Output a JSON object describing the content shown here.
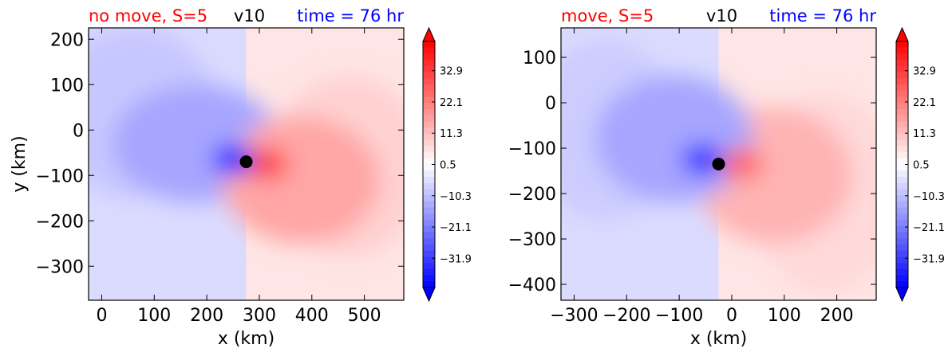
{
  "chart_data": [
    {
      "type": "heatmap",
      "title_left": "no move, S=5",
      "title_center": "v10",
      "title_right": "time = 76 hr",
      "title_left_color": "#ff0000",
      "title_right_color": "#0000ff",
      "xlabel": "x (km)",
      "ylabel": "y (km)",
      "xlim": [
        -25,
        575
      ],
      "ylim": [
        -375,
        225
      ],
      "xticks": [
        0,
        100,
        200,
        300,
        400,
        500
      ],
      "yticks": [
        200,
        100,
        0,
        -100,
        -200,
        -300
      ],
      "center_marker": {
        "x": 275,
        "y": -70
      },
      "features": [
        {
          "kind": "neg",
          "x": 250,
          "y": -65,
          "rx": 40,
          "ry": 35,
          "level": 0.85
        },
        {
          "kind": "neg",
          "x": 180,
          "y": -30,
          "rx": 160,
          "ry": 130,
          "level": 0.35
        },
        {
          "kind": "neg",
          "x": 60,
          "y": 40,
          "rx": 160,
          "ry": 190,
          "level": 0.22
        },
        {
          "kind": "pos",
          "x": 315,
          "y": -75,
          "rx": 40,
          "ry": 35,
          "level": 0.75
        },
        {
          "kind": "pos",
          "x": 380,
          "y": -110,
          "rx": 150,
          "ry": 140,
          "level": 0.35
        },
        {
          "kind": "pos",
          "x": 470,
          "y": -80,
          "rx": 150,
          "ry": 200,
          "level": 0.18
        }
      ],
      "colorbar": {
        "ticks": [
          32.9,
          22.1,
          11.3,
          0.5,
          -10.3,
          -21.1,
          -31.9
        ],
        "tick_labels": [
          "32.9",
          "22.1",
          "11.3",
          "0.5",
          "−10.3",
          "−21.1",
          "−31.9"
        ],
        "range": [
          -42,
          43
        ],
        "extend": "both",
        "cmap": "bwr"
      }
    },
    {
      "type": "heatmap",
      "title_left": "move, S=5",
      "title_center": "v10",
      "title_right": "time = 76 hr",
      "title_left_color": "#ff0000",
      "title_right_color": "#0000ff",
      "xlabel": "x (km)",
      "ylabel": "",
      "xlim": [
        -325,
        275
      ],
      "ylim": [
        -435,
        165
      ],
      "xticks": [
        -300,
        -200,
        -100,
        0,
        100,
        200
      ],
      "yticks": [
        100,
        0,
        -100,
        -200,
        -300,
        -400
      ],
      "center_marker": {
        "x": -25,
        "y": -135
      },
      "features": [
        {
          "kind": "neg",
          "x": -55,
          "y": -125,
          "rx": 40,
          "ry": 35,
          "level": 0.8
        },
        {
          "kind": "neg",
          "x": -110,
          "y": -80,
          "rx": 150,
          "ry": 140,
          "level": 0.35
        },
        {
          "kind": "neg",
          "x": -240,
          "y": -60,
          "rx": 140,
          "ry": 200,
          "level": 0.2
        },
        {
          "kind": "pos",
          "x": 20,
          "y": -135,
          "rx": 40,
          "ry": 35,
          "level": 0.6
        },
        {
          "kind": "pos",
          "x": 80,
          "y": -160,
          "rx": 150,
          "ry": 150,
          "level": 0.3
        },
        {
          "kind": "pos",
          "x": 180,
          "y": -200,
          "rx": 140,
          "ry": 220,
          "level": 0.15
        }
      ],
      "colorbar": {
        "ticks": [
          32.9,
          22.1,
          11.3,
          0.5,
          -10.3,
          -21.1,
          -31.9
        ],
        "tick_labels": [
          "32.9",
          "22.1",
          "11.3",
          "0.5",
          "−10.3",
          "−21.1",
          "−31.9"
        ],
        "range": [
          -42,
          43
        ],
        "extend": "both",
        "cmap": "bwr"
      }
    }
  ]
}
